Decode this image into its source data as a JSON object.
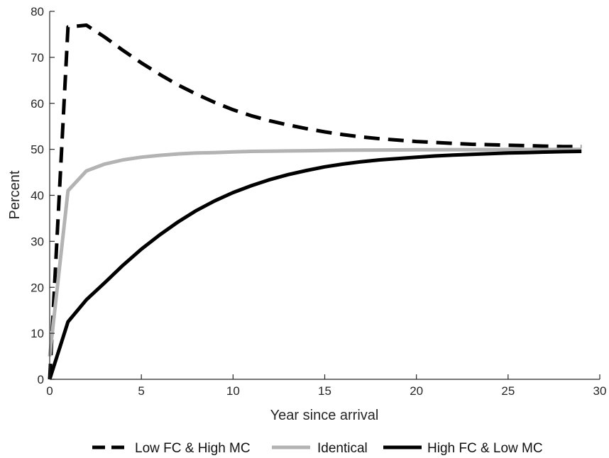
{
  "chart_data": {
    "type": "line",
    "title": "",
    "xlabel": "Year since arrival",
    "ylabel": "Percent",
    "xlim": [
      0,
      30
    ],
    "ylim": [
      0,
      80
    ],
    "xticks": [
      0,
      5,
      10,
      15,
      20,
      25,
      30
    ],
    "yticks": [
      0,
      10,
      20,
      30,
      40,
      50,
      60,
      70,
      80
    ],
    "grid": false,
    "legend_position": "bottom",
    "series": [
      {
        "name": "Low FC & High MC",
        "style": "dashed",
        "color": "#000000",
        "x": [
          0,
          1,
          2,
          3,
          4,
          5,
          6,
          7,
          8,
          9,
          10,
          11,
          12,
          13,
          14,
          15,
          16,
          17,
          18,
          19,
          20,
          21,
          22,
          23,
          24,
          25,
          26,
          27,
          28,
          29
        ],
        "y": [
          0,
          76.6,
          77.0,
          74.4,
          71.5,
          68.8,
          66.3,
          64.0,
          62.0,
          60.2,
          58.6,
          57.3,
          56.2,
          55.3,
          54.5,
          53.8,
          53.2,
          52.7,
          52.3,
          52.0,
          51.7,
          51.5,
          51.3,
          51.1,
          51.0,
          50.9,
          50.8,
          50.7,
          50.6,
          50.6
        ]
      },
      {
        "name": "Identical",
        "style": "solid",
        "color": "#b3b3b3",
        "x": [
          0,
          1,
          2,
          3,
          4,
          5,
          6,
          7,
          8,
          9,
          10,
          11,
          12,
          13,
          14,
          15,
          16,
          17,
          18,
          19,
          20,
          21,
          22,
          23,
          24,
          25,
          26,
          27,
          28,
          29
        ],
        "y": [
          5,
          41.0,
          45.3,
          46.8,
          47.7,
          48.3,
          48.7,
          49.0,
          49.2,
          49.3,
          49.45,
          49.55,
          49.6,
          49.65,
          49.7,
          49.75,
          49.8,
          49.82,
          49.85,
          49.87,
          49.9,
          49.9,
          49.92,
          49.93,
          49.94,
          49.95,
          49.96,
          49.96,
          49.97,
          49.97
        ]
      },
      {
        "name": "High FC & Low MC",
        "style": "solid",
        "color": "#000000",
        "x": [
          0,
          1,
          2,
          3,
          4,
          5,
          6,
          7,
          8,
          9,
          10,
          11,
          12,
          13,
          14,
          15,
          16,
          17,
          18,
          19,
          20,
          21,
          22,
          23,
          24,
          25,
          26,
          27,
          28,
          29
        ],
        "y": [
          0,
          12.5,
          17.3,
          21.0,
          24.8,
          28.3,
          31.4,
          34.2,
          36.7,
          38.8,
          40.6,
          42.1,
          43.4,
          44.5,
          45.4,
          46.2,
          46.8,
          47.3,
          47.7,
          48.0,
          48.3,
          48.55,
          48.75,
          48.9,
          49.05,
          49.2,
          49.3,
          49.4,
          49.5,
          49.55
        ]
      }
    ]
  }
}
